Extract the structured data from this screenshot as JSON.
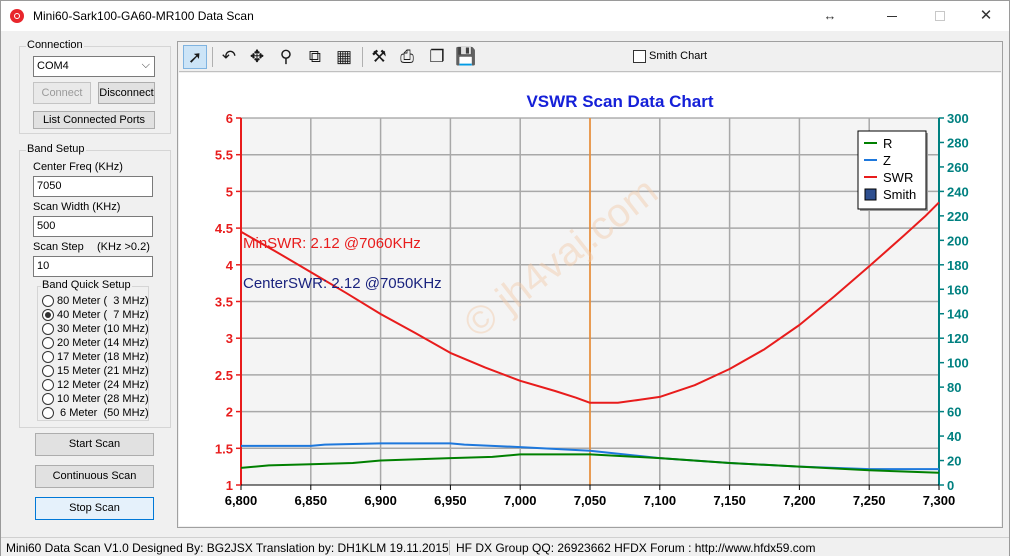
{
  "window": {
    "title": "Mini60-Sark100-GA60-MR100 Data Scan"
  },
  "connection": {
    "group_label": "Connection",
    "port_value": "COM4",
    "connect_label": "Connect",
    "disconnect_label": "Disconnect",
    "list_ports_label": "List Connected Ports"
  },
  "band_setup": {
    "group_label": "Band Setup",
    "center_freq_label": "Center Freq  (KHz)",
    "center_freq_value": "7050",
    "scan_width_label": "Scan Width   (KHz)",
    "scan_width_value": "500",
    "scan_step_label": "Scan Step",
    "scan_step_hint": "(KHz >0.2)",
    "scan_step_value": "10",
    "quick_setup_label": "Band Quick Setup",
    "bands": [
      {
        "label": "80 Meter (  3 MHz)",
        "checked": false
      },
      {
        "label": "40 Meter (  7 MHz)",
        "checked": true
      },
      {
        "label": "30 Meter (10 MHz)",
        "checked": false
      },
      {
        "label": "20 Meter (14 MHz)",
        "checked": false
      },
      {
        "label": "17 Meter (18 MHz)",
        "checked": false
      },
      {
        "label": "15 Meter (21 MHz)",
        "checked": false
      },
      {
        "label": "12 Meter (24 MHz)",
        "checked": false
      },
      {
        "label": "10 Meter (28 MHz)",
        "checked": false
      },
      {
        "label": " 6 Meter  (50 MHz)",
        "checked": false
      }
    ]
  },
  "actions": {
    "start_scan": "Start Scan",
    "continuous_scan": "Continuous Scan",
    "stop_scan": "Stop Scan"
  },
  "toolbar": {
    "smith_chart_label": "Smith Chart",
    "smith_chart_checked": false,
    "tools": [
      "pointer-icon",
      "undo-icon",
      "pan-icon",
      "zoom-icon",
      "zoom-fit-icon",
      "table-icon",
      "tools-icon",
      "print-icon",
      "copy-icon",
      "save-icon"
    ]
  },
  "status_bar": {
    "left": "Mini60 Data Scan V1.0   Designed By: BG2JSX  Translation by: DH1KLM    19.11.2015",
    "right": "HF DX Group QQ: 26923662  HFDX Forum :  http://www.hfdx59.com"
  },
  "chart_data": {
    "type": "line",
    "title": "VSWR Scan Data Chart",
    "watermark": "© jh4vaj.com",
    "x_ticks": [
      "6,800",
      "6,850",
      "6,900",
      "6,950",
      "7,000",
      "7,050",
      "7,100",
      "7,150",
      "7,200",
      "7,250",
      "7,300"
    ],
    "y_left_ticks": [
      "1",
      "1.5",
      "2",
      "2.5",
      "3",
      "3.5",
      "4",
      "4.5",
      "5",
      "5.5",
      "6"
    ],
    "y_right_ticks": [
      "0",
      "20",
      "40",
      "60",
      "80",
      "100",
      "120",
      "140",
      "160",
      "180",
      "200",
      "220",
      "240",
      "260",
      "280",
      "300"
    ],
    "xlim": [
      6800,
      7300
    ],
    "ylim_left": [
      1,
      6
    ],
    "ylim_right": [
      0,
      300
    ],
    "grid": true,
    "legend_position": "top-right",
    "legend": [
      {
        "name": "R",
        "color": "#008000",
        "kind": "line"
      },
      {
        "name": "Z",
        "color": "#1e78dc",
        "kind": "line"
      },
      {
        "name": "SWR",
        "color": "#e81c1c",
        "kind": "line"
      },
      {
        "name": "Smith",
        "color": "#2e4f8f",
        "kind": "box"
      }
    ],
    "center_marker_x": 7050,
    "annotations": [
      {
        "text": "MinSWR: 2.12 @7060KHz",
        "color": "#e81c1c"
      },
      {
        "text": "CenterSWR: 2.12 @7050KHz",
        "color": "#1a237e"
      }
    ],
    "series": [
      {
        "name": "SWR",
        "axis": "left",
        "color": "#e81c1c",
        "x": [
          6800,
          6825,
          6850,
          6875,
          6900,
          6925,
          6950,
          6975,
          7000,
          7025,
          7040,
          7050,
          7060,
          7070,
          7085,
          7100,
          7125,
          7150,
          7175,
          7200,
          7225,
          7250,
          7275,
          7290,
          7300
        ],
        "y": [
          4.45,
          4.18,
          3.9,
          3.62,
          3.33,
          3.07,
          2.8,
          2.6,
          2.42,
          2.28,
          2.19,
          2.12,
          2.12,
          2.12,
          2.16,
          2.2,
          2.36,
          2.58,
          2.85,
          3.18,
          3.57,
          3.98,
          4.4,
          4.66,
          4.85
        ]
      },
      {
        "name": "Z",
        "axis": "right",
        "color": "#1e78dc",
        "x": [
          6800,
          6850,
          6860,
          6900,
          6950,
          6960,
          7000,
          7050,
          7100,
          7150,
          7200,
          7250,
          7300
        ],
        "y": [
          32,
          32,
          33,
          34,
          34,
          33,
          31,
          28,
          22,
          18,
          15,
          13,
          13
        ]
      },
      {
        "name": "R",
        "axis": "right",
        "color": "#008000",
        "x": [
          6800,
          6820,
          6850,
          6880,
          6900,
          6950,
          6980,
          7000,
          7050,
          7100,
          7150,
          7200,
          7250,
          7300
        ],
        "y": [
          14,
          16,
          17,
          18,
          20,
          22,
          23,
          25,
          25,
          22,
          18,
          15,
          12,
          10
        ]
      }
    ]
  }
}
